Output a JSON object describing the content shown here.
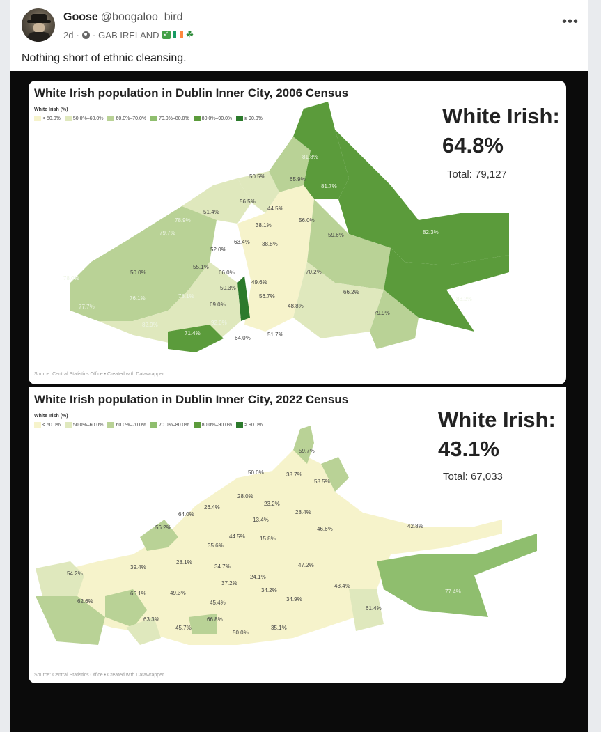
{
  "post": {
    "display_name": "Goose",
    "handle": "@boogaloo_bird",
    "time": "2d",
    "separator": "·",
    "group": "GAB IRELAND",
    "more_label": "•••",
    "text": "Nothing short of ethnic cleansing."
  },
  "colors": {
    "lt50": "#f6f3cb",
    "c50_60": "#dfe8bd",
    "c60_70": "#b9d296",
    "c70_80": "#8fbe6e",
    "c80_90": "#5b9b3b",
    "c90": "#2c7a2c"
  },
  "legend": {
    "label": "White Irish (%)",
    "items": [
      "< 50.0%",
      "50.0%–60.0%",
      "60.0%–70.0%",
      "70.0%–80.0%",
      "80.0%–90.0%",
      "≥ 90.0%"
    ]
  },
  "map2006": {
    "title": "White Irish population in Dublin Inner City, 2006 Census",
    "stat_label": "White Irish:",
    "stat_value": "64.8%",
    "total": "Total: 79,127",
    "source": "Source: Central Statistics Office • Created with Datawrapper",
    "labels": [
      "81.8%",
      "50.5%",
      "65.9%",
      "81.7%",
      "56.5%",
      "44.5%",
      "56.0%",
      "51.4%",
      "78.9%",
      "38.1%",
      "59.6%",
      "79.7%",
      "63.4%",
      "38.8%",
      "82.3%",
      "52.0%",
      "55.1%",
      "66.0%",
      "50.0%",
      "70.2%",
      "78.0%",
      "50.3%",
      "49.6%",
      "76.1%",
      "78.1%",
      "56.7%",
      "66.2%",
      "69.0%",
      "48.8%",
      "77.7%",
      "88.2%",
      "79.9%",
      "82.9%",
      "92.0%",
      "71.4%",
      "64.0%",
      "51.7%"
    ]
  },
  "map2022": {
    "title": "White Irish population in Dublin Inner City, 2022 Census",
    "stat_label": "White Irish:",
    "stat_value": "43.1%",
    "total": "Total: 67,033",
    "source": "Source: Central Statistics Office • Created with Datawrapper",
    "labels": [
      "59.7%",
      "50.0%",
      "38.7%",
      "58.5%",
      "28.0%",
      "23.2%",
      "26.4%",
      "64.0%",
      "28.4%",
      "13.4%",
      "56.2%",
      "46.6%",
      "42.8%",
      "44.5%",
      "15.8%",
      "35.6%",
      "28.1%",
      "34.7%",
      "47.2%",
      "39.4%",
      "54.2%",
      "24.1%",
      "37.2%",
      "43.4%",
      "66.1%",
      "49.3%",
      "34.2%",
      "62.6%",
      "45.4%",
      "34.9%",
      "61.4%",
      "77.4%",
      "63.3%",
      "66.8%",
      "45.7%",
      "50.0%",
      "35.1%"
    ]
  }
}
